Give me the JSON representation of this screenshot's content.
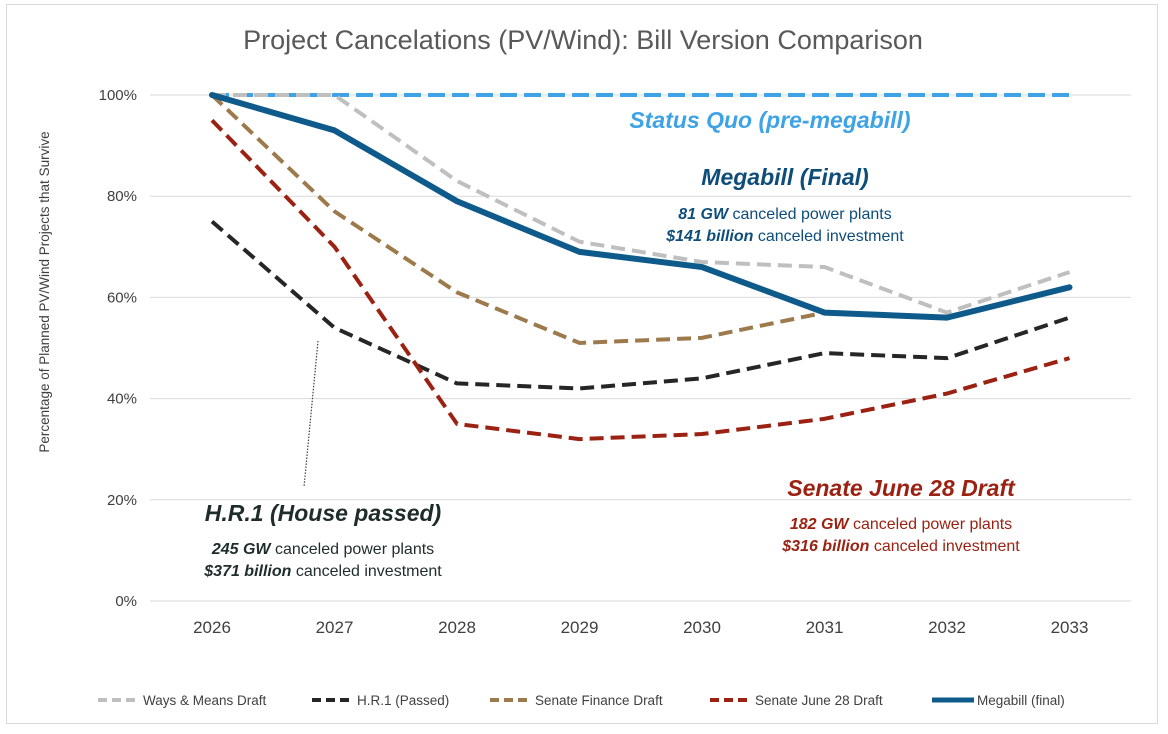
{
  "chart_data": {
    "type": "line",
    "title": "Project Cancelations (PV/Wind):  Bill Version Comparison",
    "ylabel": "Percentage of Planned PV/Wind Projects that Survive",
    "xlabel": "",
    "x": [
      "2026",
      "2027",
      "2028",
      "2029",
      "2030",
      "2031",
      "2032",
      "2033"
    ],
    "ylim": [
      0,
      100
    ],
    "yticks": [
      "0%",
      "20%",
      "40%",
      "60%",
      "80%",
      "100%"
    ],
    "grid": true,
    "legend_position": "bottom",
    "series": [
      {
        "name": "Ways & Means Draft",
        "color": "#bfbfbf",
        "dash": true,
        "values": [
          100,
          100,
          83,
          71,
          67,
          66,
          57,
          65
        ]
      },
      {
        "name": "H.R.1 (Passed)",
        "color": "#262626",
        "dash": true,
        "values": [
          75,
          54,
          43,
          42,
          44,
          49,
          48,
          56
        ]
      },
      {
        "name": "Senate Finance Draft",
        "color": "#9c7a4b",
        "dash": true,
        "values": [
          100,
          77,
          61,
          51,
          52,
          57,
          null,
          null
        ]
      },
      {
        "name": "Senate June 28 Draft",
        "color": "#9b2212",
        "dash": true,
        "values": [
          95,
          70,
          35,
          32,
          33,
          36,
          41,
          48
        ]
      },
      {
        "name": "Megabill (final)",
        "color": "#0e5a8a",
        "dash": false,
        "values": [
          100,
          93,
          79,
          69,
          66,
          57,
          56,
          62
        ]
      }
    ],
    "status_quo": {
      "label": "Status Quo (pre-megabill)",
      "color": "#3ea3e6",
      "value": 100
    },
    "annotations": {
      "megabill": {
        "head": "Megabill (Final)",
        "gw": "81 GW",
        "gw_text": " canceled power plants",
        "usd": "$141 billion",
        "usd_text": " canceled investment",
        "color": "#0e4d7a"
      },
      "hr1": {
        "head": "H.R.1 (House passed)",
        "gw": "245 GW",
        "gw_text": " canceled power plants",
        "usd": "$371 billion",
        "usd_text": " canceled investment",
        "color": "#1f2d2a"
      },
      "senate": {
        "head": "Senate June 28 Draft",
        "gw": "182 GW",
        "gw_text": " canceled power plants",
        "usd": "$316 billion",
        "usd_text": " canceled investment",
        "color": "#9b2212"
      }
    }
  }
}
